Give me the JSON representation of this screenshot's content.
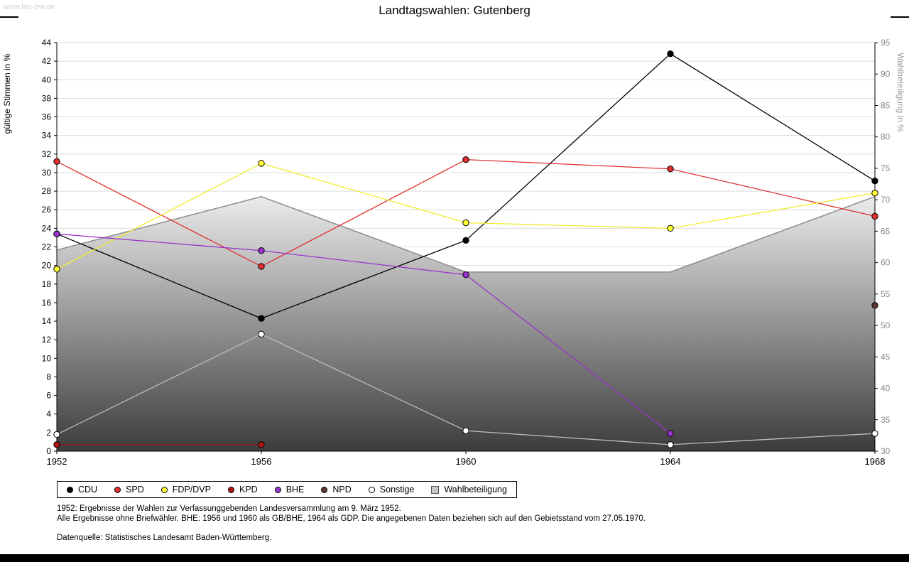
{
  "header": {
    "watermark": "www.leo-bw.de"
  },
  "chart_data": {
    "type": "line",
    "title": "Landtagswahlen: Gutenberg",
    "categories": [
      "1952",
      "1956",
      "1960",
      "1964",
      "1968"
    ],
    "left_axis": {
      "label": "gültige Stimmen in %",
      "min": 0,
      "max": 44,
      "step": 2
    },
    "right_axis": {
      "label": "Wahlbeteiligung in %",
      "min": 30,
      "max": 95,
      "step": 5
    },
    "grid": "horizontal",
    "legend_position": "bottom",
    "series": [
      {
        "name": "CDU",
        "color": "#000000",
        "line": "#000000",
        "values": [
          23.4,
          14.3,
          22.7,
          42.8,
          29.1
        ]
      },
      {
        "name": "SPD",
        "color": "#e03030",
        "line": "#e03030",
        "values": [
          31.2,
          19.9,
          31.4,
          30.4,
          25.3
        ]
      },
      {
        "name": "FDP/DVP",
        "color": "#ffff33",
        "line": "#f0ec2e",
        "values": [
          19.6,
          31.0,
          24.6,
          24.0,
          27.8
        ]
      },
      {
        "name": "KPD",
        "color": "#b01414",
        "line": "#a01010",
        "values": [
          0.7,
          0.7,
          null,
          null,
          null
        ]
      },
      {
        "name": "BHE",
        "color": "#9933cc",
        "line": "#9933cc",
        "values": [
          23.4,
          21.6,
          19.0,
          1.9,
          null
        ]
      },
      {
        "name": "NPD",
        "color": "#5e3535",
        "line": "#5e3535",
        "values": [
          null,
          null,
          null,
          null,
          15.7
        ]
      },
      {
        "name": "Sonstige",
        "color": "#ffffff",
        "line": "#bdbdbd",
        "values": [
          1.8,
          12.6,
          2.2,
          0.7,
          1.9
        ]
      }
    ],
    "participation": {
      "name": "Wahlbeteiligung",
      "axis": "right",
      "values": [
        62,
        70.5,
        58.5,
        58.5,
        70.5
      ],
      "edge": "#8c8c8c",
      "fill_top": "#ebebeb",
      "fill_bottom": "#3c3c3c",
      "legend_swatch": "#c8c8c8"
    }
  },
  "footnotes": {
    "line1": "1952: Ergebnisse der Wahlen zur Verfassunggebenden Landesversammlung am 9. März 1952.",
    "line2": "Alle Ergebnisse ohne Briefwähler. BHE: 1956 und 1960 als GB/BHE, 1964 als GDP. Die angegebenen Daten beziehen sich auf den Gebietsstand vom 27.05.1970.",
    "source": "Datenquelle: Statistisches Landesamt Baden-Württemberg."
  }
}
